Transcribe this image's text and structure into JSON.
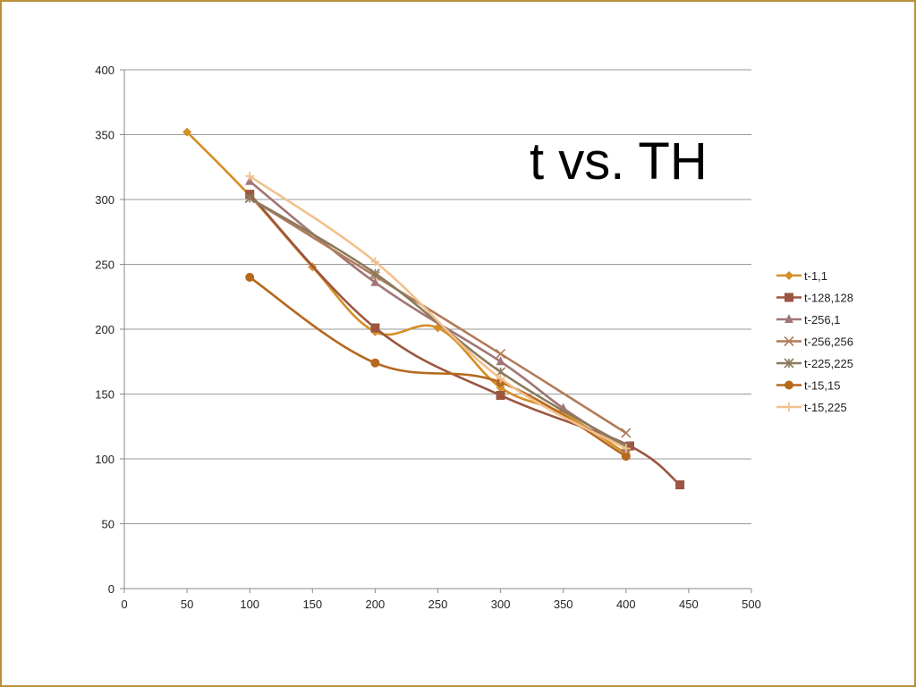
{
  "chart_data": {
    "type": "line",
    "title": "t vs. TH",
    "xlabel": "",
    "ylabel": "",
    "xlim": [
      0,
      500
    ],
    "ylim": [
      0,
      400
    ],
    "x_ticks": [
      0,
      50,
      100,
      150,
      200,
      250,
      300,
      350,
      400,
      450,
      500
    ],
    "y_ticks": [
      0,
      50,
      100,
      150,
      200,
      250,
      300,
      350,
      400
    ],
    "grid": "horizontal",
    "legend_position": "right",
    "smooth": true,
    "series": [
      {
        "name": "t-1,1",
        "color": "#d48f27",
        "marker": "diamond",
        "x": [
          50,
          100,
          150,
          200,
          250,
          300,
          350,
          400
        ],
        "y": [
          352,
          303,
          248,
          198,
          201,
          155,
          135,
          104
        ]
      },
      {
        "name": "t-128,128",
        "color": "#9b5540",
        "marker": "square",
        "x": [
          100,
          200,
          300,
          403,
          443
        ],
        "y": [
          304,
          201,
          149,
          110,
          80
        ]
      },
      {
        "name": "t-256,1",
        "color": "#a17676",
        "marker": "triangle",
        "x": [
          100,
          200,
          300,
          350,
          400
        ],
        "y": [
          314,
          236,
          175,
          139,
          108
        ]
      },
      {
        "name": "t-256,256",
        "color": "#b07c5a",
        "marker": "x",
        "x": [
          100,
          200,
          300,
          400
        ],
        "y": [
          301,
          241,
          181,
          120
        ]
      },
      {
        "name": "t-225,225",
        "color": "#8b7a5e",
        "marker": "star",
        "x": [
          100,
          200,
          300,
          400
        ],
        "y": [
          301,
          243,
          167,
          110
        ]
      },
      {
        "name": "t-15,15",
        "color": "#b5691e",
        "marker": "circle",
        "x": [
          100,
          200,
          300,
          400
        ],
        "y": [
          240,
          174,
          159,
          102
        ]
      },
      {
        "name": "t-15,225",
        "color": "#f2c08c",
        "marker": "plus",
        "x": [
          100,
          200,
          300,
          400
        ],
        "y": [
          318,
          252,
          162,
          108
        ]
      }
    ]
  }
}
